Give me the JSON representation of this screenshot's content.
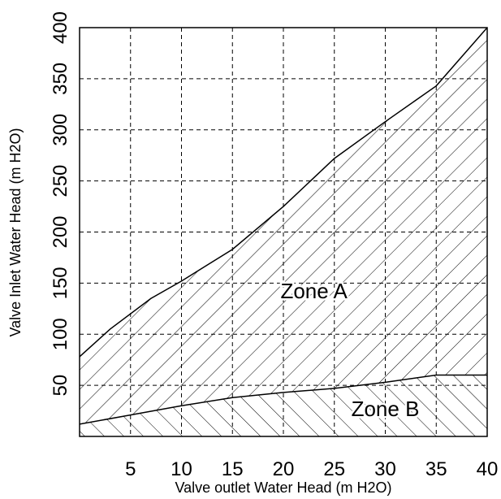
{
  "chart_data": {
    "type": "area",
    "xlabel": "Valve outlet Water Head (m H2O)",
    "ylabel": "Valve Inlet Water Head (m H2O)",
    "xlim": [
      0,
      40
    ],
    "ylim": [
      0,
      400
    ],
    "x_ticks": [
      "5",
      "10",
      "15",
      "20",
      "25",
      "30",
      "35",
      "40"
    ],
    "y_ticks": [
      "50",
      "100",
      "150",
      "200",
      "250",
      "300",
      "350",
      "400"
    ],
    "grid": true,
    "grid_style": "dashed",
    "boundaries": {
      "upper": {
        "x": [
          0,
          3,
          7,
          10,
          15,
          20,
          25,
          30,
          35,
          40
        ],
        "y": [
          78,
          105,
          135,
          152,
          183,
          225,
          272,
          308,
          343,
          400
        ]
      },
      "middle": {
        "x": [
          0,
          5,
          10,
          15,
          20,
          25,
          30,
          35,
          40
        ],
        "y": [
          12,
          21,
          30,
          38,
          43,
          47,
          53,
          60,
          60
        ]
      }
    },
    "zones": [
      {
        "label": "Zone A",
        "between": [
          "middle",
          "upper"
        ],
        "hatch": "backslash"
      },
      {
        "label": "Zone B",
        "between": [
          "axis",
          "middle"
        ],
        "hatch": "slash"
      }
    ],
    "annotations": [
      {
        "text": "Zone A",
        "x": 23,
        "y": 135
      },
      {
        "text": "Zone B",
        "x": 30,
        "y": 20
      }
    ]
  }
}
